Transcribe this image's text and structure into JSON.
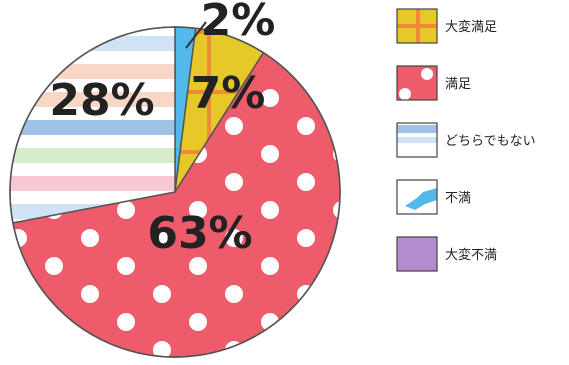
{
  "chart_data": {
    "type": "pie",
    "title": "",
    "slices": [
      {
        "label": "大変満足",
        "value": 7,
        "display": "7%",
        "color": "#e6c928",
        "pattern": "cross",
        "pattern_color": "#f08a3a"
      },
      {
        "label": "満足",
        "value": 63,
        "display": "63%",
        "color": "#ee5c6c",
        "pattern": "dots",
        "pattern_color": "#ffffff"
      },
      {
        "label": "どちらでもない",
        "value": 28,
        "display": "28%",
        "color": "#ffffff",
        "pattern": "stripes",
        "pattern_color": "#9ec3e6"
      },
      {
        "label": "不満",
        "value": 2,
        "display": "2%",
        "color": "#53b8ea",
        "pattern": "notch",
        "pattern_color": "#ffffff"
      },
      {
        "label": "大変不満",
        "value": 0,
        "display": "",
        "color": "#b28ccf",
        "pattern": "none",
        "pattern_color": "#b28ccf"
      }
    ],
    "legend_position": "right"
  }
}
